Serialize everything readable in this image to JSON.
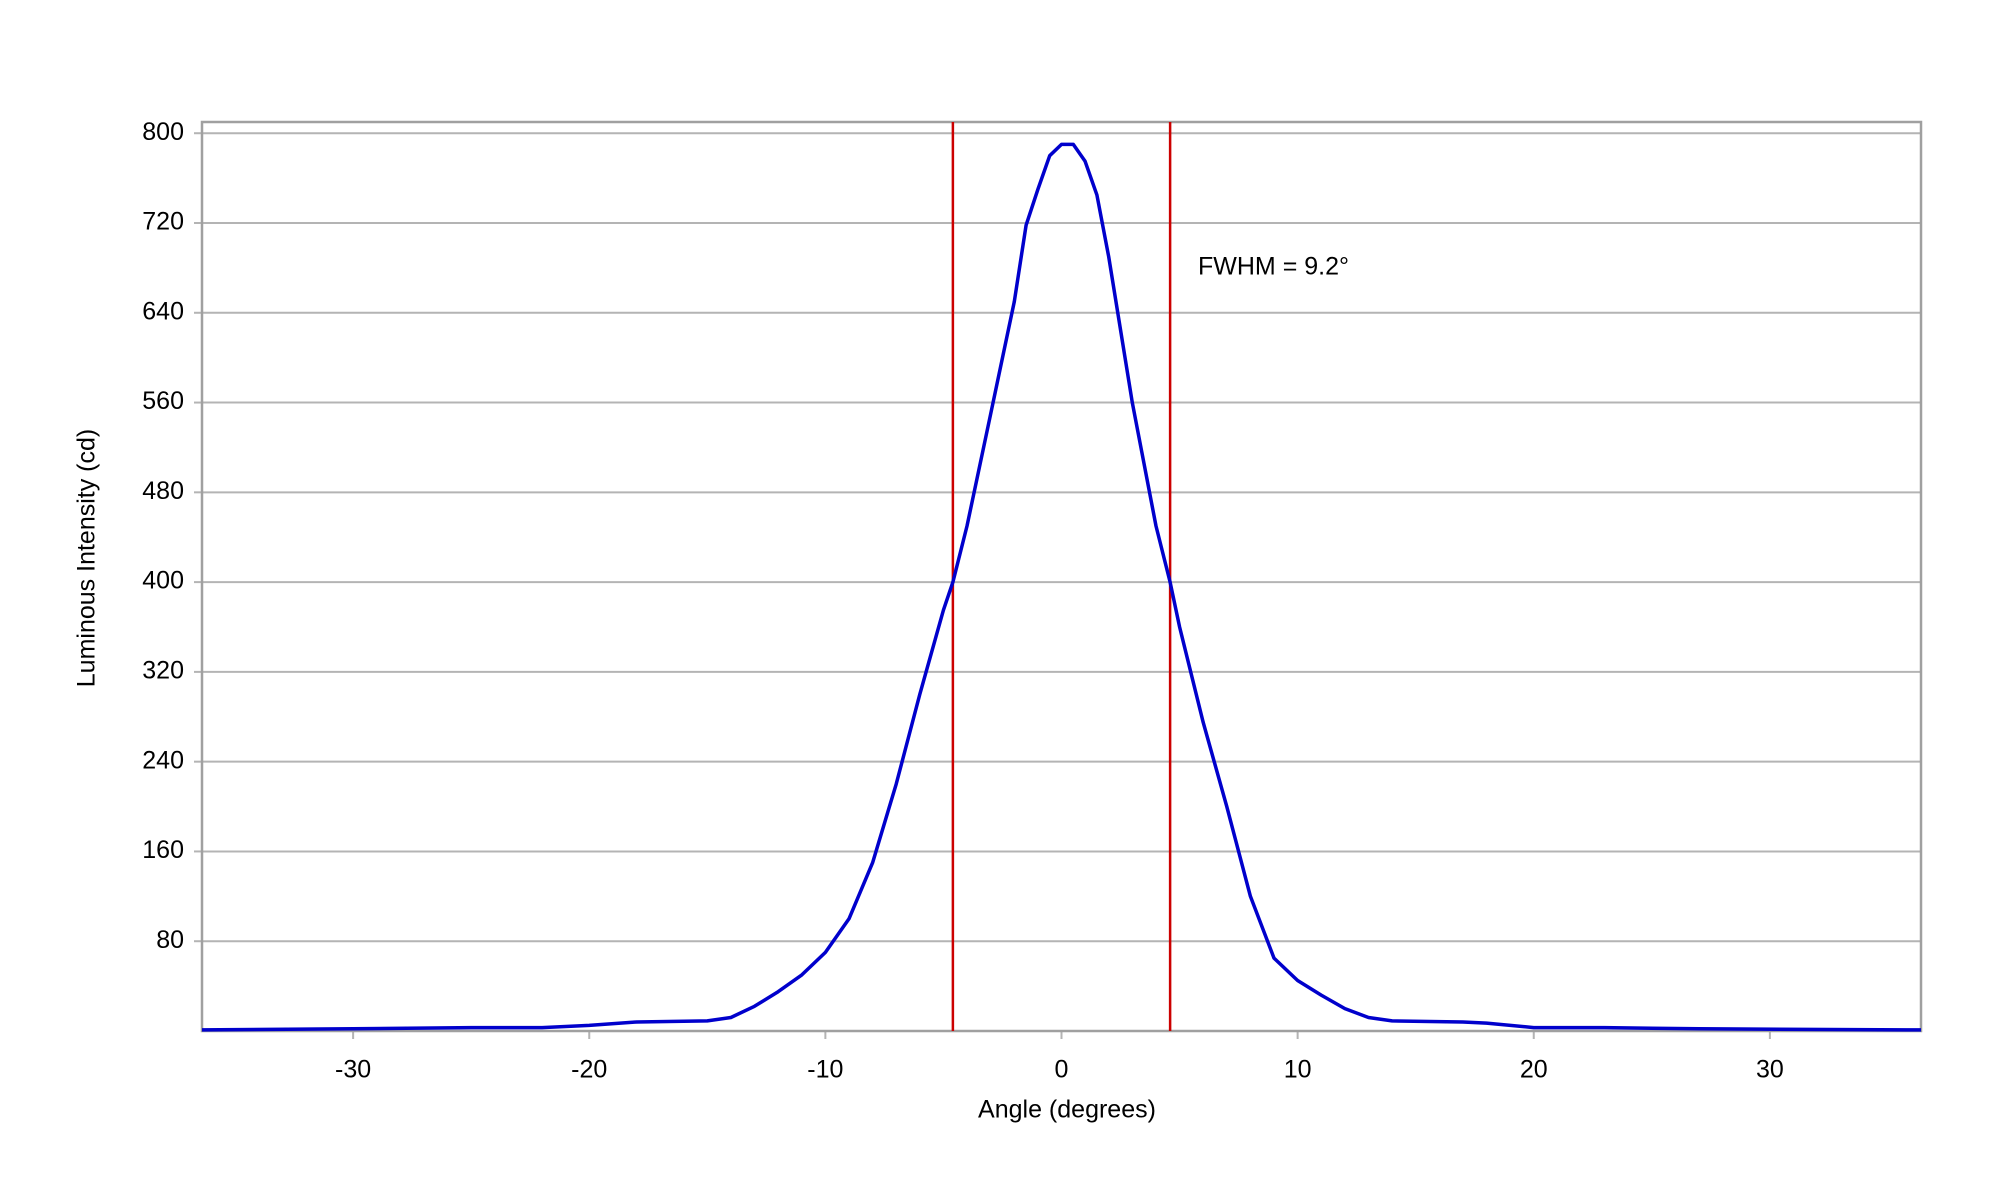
{
  "chart_data": {
    "type": "line",
    "xlabel": "Angle (degrees)",
    "ylabel": "Luminous Intensity (cd)",
    "annotations": [
      "FWHM = 9.2°"
    ],
    "x": [
      -36.4,
      -30,
      -25,
      -22,
      -20,
      -18,
      -15,
      -14,
      -13,
      -12,
      -11,
      -10,
      -9,
      -8,
      -7,
      -6,
      -5,
      -4.6,
      -4,
      -3,
      -2,
      -1.5,
      -1,
      -0.5,
      0,
      0.5,
      1,
      1.5,
      2,
      3,
      4,
      4.6,
      5,
      6,
      7,
      8,
      9,
      10,
      11,
      12,
      13,
      14,
      17,
      18,
      20,
      23,
      27,
      36.4
    ],
    "series": [
      {
        "color": "#0000cc",
        "values": [
          1,
          2,
          3,
          3,
          5,
          8,
          9,
          12,
          22,
          35,
          50,
          70,
          100,
          150,
          220,
          300,
          375,
          400,
          450,
          550,
          650,
          718,
          750,
          780,
          790,
          790,
          775,
          745,
          690,
          560,
          450,
          400,
          360,
          275,
          200,
          120,
          65,
          45,
          32,
          20,
          12,
          9,
          8,
          7,
          3,
          3,
          2,
          1
        ]
      }
    ],
    "vlines": {
      "color": "#cc0000",
      "values": [
        -4.6,
        4.6
      ]
    },
    "xlim": [
      -36.4,
      36.4
    ],
    "ylim": [
      0,
      810
    ],
    "xticks": [
      -30,
      -20,
      -10,
      0,
      10,
      20,
      30
    ],
    "yticks": [
      80,
      160,
      240,
      320,
      400,
      480,
      560,
      640,
      720,
      800
    ],
    "grid": true
  }
}
